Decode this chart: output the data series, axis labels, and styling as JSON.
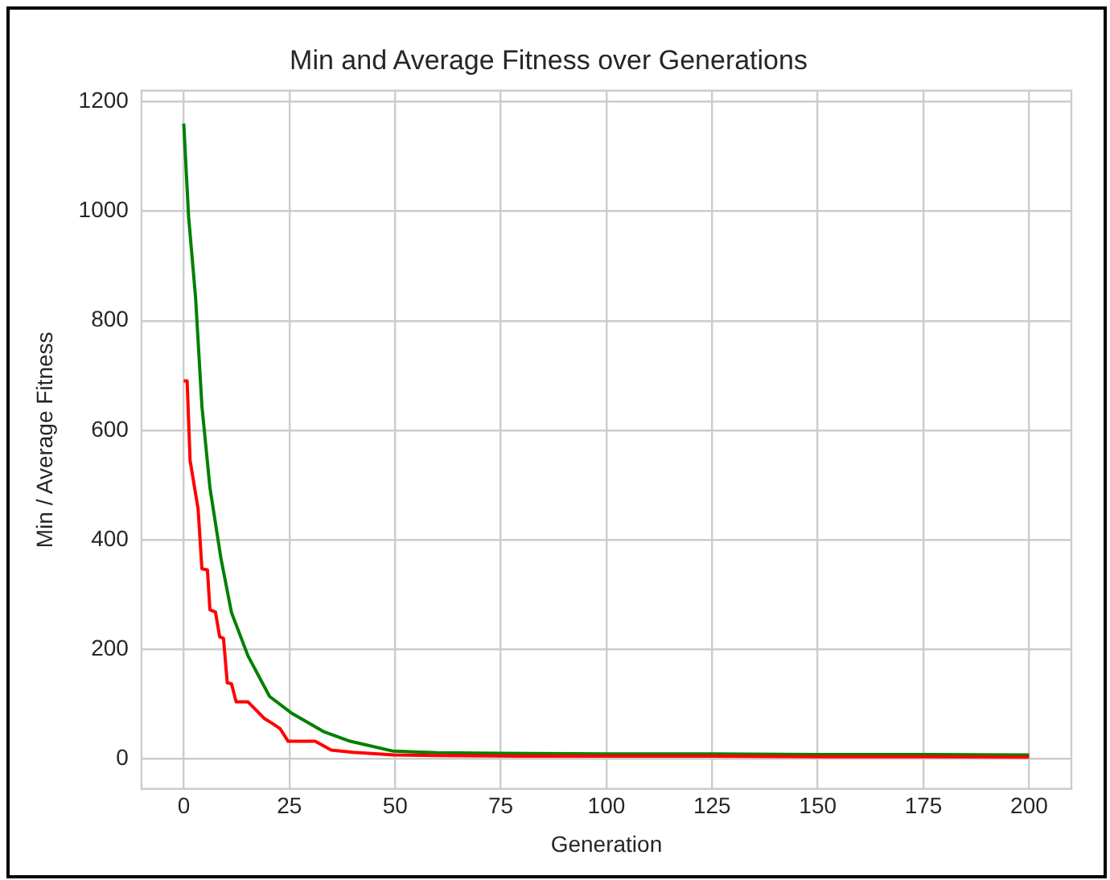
{
  "chart_data": {
    "type": "line",
    "title": "Min and Average Fitness over Generations",
    "xlabel": "Generation",
    "ylabel": "Min / Average Fitness",
    "xlim": [
      -10,
      210
    ],
    "xticks": [
      0,
      25,
      50,
      75,
      100,
      125,
      150,
      175,
      200
    ],
    "ylim": [
      -55,
      1220
    ],
    "yticks": [
      0,
      200,
      400,
      600,
      800,
      1000,
      1200
    ],
    "grid": true,
    "legend": false,
    "marker": "none",
    "line_style": "solid",
    "series": [
      {
        "color": "#ff0000",
        "x": [
          0,
          0.8,
          1.5,
          3.4,
          4.3,
          5.6,
          6.2,
          7.5,
          8.5,
          9.4,
          10.3,
          11.3,
          12.4,
          15.2,
          17,
          19,
          20.9,
          22.8,
          24.7,
          31.1,
          34.9,
          40,
          49.6,
          60,
          80,
          100,
          125,
          150,
          175,
          200
        ],
        "values": [
          690,
          690,
          545,
          456,
          347,
          345,
          272,
          268,
          223,
          220,
          139,
          137,
          104,
          104,
          90,
          74,
          65,
          55,
          32,
          32,
          16,
          12,
          7,
          6,
          5,
          5,
          5,
          4,
          4,
          3
        ]
      },
      {
        "color": "#008000",
        "x": [
          0,
          1.15,
          2.8,
          4.3,
          6.2,
          8.8,
          11.3,
          15.2,
          20.3,
          25.4,
          33,
          39.4,
          49.6,
          60,
          75,
          100,
          125,
          150,
          175,
          200
        ],
        "values": [
          1160,
          990,
          842,
          644,
          495,
          366,
          267,
          188,
          114,
          84,
          50,
          32,
          14,
          11,
          10,
          9,
          9,
          8,
          8,
          7
        ]
      }
    ]
  }
}
